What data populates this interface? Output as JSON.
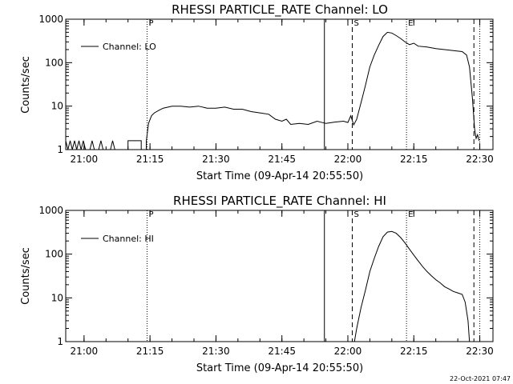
{
  "footer": {
    "timestamp": "22-Oct-2021 07:47"
  },
  "chart_data": [
    {
      "type": "line",
      "title": "RHESSI PARTICLE_RATE Channel: LO",
      "xlabel": "Start Time (09-Apr-14 20:55:50)",
      "ylabel": "Counts/sec",
      "yscale": "log",
      "xlim": [
        "20:55:50",
        "22:33:00"
      ],
      "ylim": [
        1,
        1000
      ],
      "x_ticks": [
        "21:00",
        "21:15",
        "21:30",
        "21:45",
        "22:00",
        "22:15",
        "22:30"
      ],
      "y_ticks": [
        "1",
        "10",
        "100",
        "1000"
      ],
      "legend": {
        "position": "top-left",
        "entries": [
          "Channel: LO"
        ]
      },
      "event_markers": [
        {
          "label": "P",
          "time": "21:14:20",
          "style": "dotted"
        },
        {
          "label": "",
          "time": "21:54:40",
          "style": "solid"
        },
        {
          "label": "S",
          "time": "22:01:00",
          "style": "dashed"
        },
        {
          "label": "E",
          "time": "22:13:20",
          "style": "dotted"
        },
        {
          "label": "",
          "time": "22:28:40",
          "style": "dashed"
        },
        {
          "label": "",
          "time": "22:30:00",
          "style": "dotted"
        }
      ],
      "series": [
        {
          "name": "Channel: LO",
          "points": [
            [
              "20:55:50",
              1.6
            ],
            [
              "20:56:20",
              1
            ],
            [
              "20:56:50",
              1.6
            ],
            [
              "20:57:20",
              1
            ],
            [
              "20:57:50",
              1.6
            ],
            [
              "20:58:20",
              1
            ],
            [
              "20:58:50",
              1.6
            ],
            [
              "20:59:20",
              1
            ],
            [
              "20:59:50",
              1.6
            ],
            [
              "21:00:20",
              1
            ],
            [
              "21:01:20",
              1
            ],
            [
              "21:01:50",
              1.6
            ],
            [
              "21:02:20",
              1
            ],
            [
              "21:03:20",
              1
            ],
            [
              "21:03:50",
              1.6
            ],
            [
              "21:04:20",
              1
            ],
            [
              "21:06:00",
              1
            ],
            [
              "21:06:30",
              1.6
            ],
            [
              "21:07:00",
              1
            ],
            [
              "21:10:00",
              1
            ],
            [
              "21:10:00",
              1.6
            ],
            [
              "21:13:00",
              1.6
            ],
            [
              "21:13:00",
              1
            ],
            [
              "21:14:10",
              1
            ],
            [
              "21:14:10",
              1.6
            ],
            [
              "21:14:40",
              4
            ],
            [
              "21:15:20",
              6
            ],
            [
              "21:16:00",
              7
            ],
            [
              "21:17:00",
              8
            ],
            [
              "21:18:00",
              9
            ],
            [
              "21:20:00",
              10
            ],
            [
              "21:22:00",
              10
            ],
            [
              "21:24:00",
              9.5
            ],
            [
              "21:26:00",
              10
            ],
            [
              "21:28:00",
              9
            ],
            [
              "21:30:00",
              9
            ],
            [
              "21:32:00",
              9.5
            ],
            [
              "21:34:00",
              8.5
            ],
            [
              "21:36:00",
              8.5
            ],
            [
              "21:38:00",
              7.5
            ],
            [
              "21:40:00",
              7
            ],
            [
              "21:42:00",
              6.5
            ],
            [
              "21:43:30",
              5
            ],
            [
              "21:45:00",
              4.5
            ],
            [
              "21:46:00",
              5
            ],
            [
              "21:47:00",
              3.8
            ],
            [
              "21:49:00",
              4
            ],
            [
              "21:51:00",
              3.8
            ],
            [
              "21:53:00",
              4.5
            ],
            [
              "21:55:00",
              4
            ],
            [
              "21:57:00",
              4.3
            ],
            [
              "21:59:00",
              4.5
            ],
            [
              "22:00:00",
              4.2
            ],
            [
              "22:00:40",
              6
            ],
            [
              "22:01:20",
              3.7
            ],
            [
              "22:02:00",
              5
            ],
            [
              "22:03:00",
              12
            ],
            [
              "22:04:00",
              30
            ],
            [
              "22:05:00",
              80
            ],
            [
              "22:06:00",
              150
            ],
            [
              "22:07:00",
              250
            ],
            [
              "22:08:00",
              400
            ],
            [
              "22:09:00",
              500
            ],
            [
              "22:10:00",
              480
            ],
            [
              "22:11:00",
              420
            ],
            [
              "22:12:00",
              360
            ],
            [
              "22:13:00",
              300
            ],
            [
              "22:14:00",
              260
            ],
            [
              "22:15:00",
              280
            ],
            [
              "22:16:00",
              240
            ],
            [
              "22:18:00",
              230
            ],
            [
              "22:20:00",
              210
            ],
            [
              "22:22:00",
              200
            ],
            [
              "22:24:00",
              190
            ],
            [
              "22:26:00",
              180
            ],
            [
              "22:27:00",
              150
            ],
            [
              "22:27:40",
              80
            ],
            [
              "22:28:20",
              15
            ],
            [
              "22:28:50",
              3
            ],
            [
              "22:29:10",
              1.8
            ],
            [
              "22:29:30",
              2.2
            ],
            [
              "22:29:50",
              1.6
            ]
          ]
        }
      ]
    },
    {
      "type": "line",
      "title": "RHESSI PARTICLE_RATE Channel: HI",
      "xlabel": "Start Time (09-Apr-14 20:55:50)",
      "ylabel": "Counts/sec",
      "yscale": "log",
      "xlim": [
        "20:55:50",
        "22:33:00"
      ],
      "ylim": [
        1,
        1000
      ],
      "x_ticks": [
        "21:00",
        "21:15",
        "21:30",
        "21:45",
        "22:00",
        "22:15",
        "22:30"
      ],
      "y_ticks": [
        "1",
        "10",
        "100",
        "1000"
      ],
      "legend": {
        "position": "top-left",
        "entries": [
          "Channel: HI"
        ]
      },
      "event_markers": [
        {
          "label": "P",
          "time": "21:14:20",
          "style": "dotted"
        },
        {
          "label": "",
          "time": "21:54:40",
          "style": "solid"
        },
        {
          "label": "S",
          "time": "22:01:00",
          "style": "dashed"
        },
        {
          "label": "E",
          "time": "22:13:20",
          "style": "dotted"
        },
        {
          "label": "",
          "time": "22:28:40",
          "style": "dashed"
        },
        {
          "label": "",
          "time": "22:30:00",
          "style": "dotted"
        }
      ],
      "series": [
        {
          "name": "Channel: HI",
          "points": [
            [
              "22:01:30",
              1
            ],
            [
              "22:02:00",
              2
            ],
            [
              "22:03:00",
              6
            ],
            [
              "22:04:00",
              15
            ],
            [
              "22:05:00",
              40
            ],
            [
              "22:06:00",
              80
            ],
            [
              "22:07:00",
              150
            ],
            [
              "22:08:00",
              250
            ],
            [
              "22:09:00",
              320
            ],
            [
              "22:10:00",
              330
            ],
            [
              "22:11:00",
              300
            ],
            [
              "22:12:00",
              240
            ],
            [
              "22:13:00",
              180
            ],
            [
              "22:14:00",
              130
            ],
            [
              "22:15:00",
              95
            ],
            [
              "22:16:00",
              70
            ],
            [
              "22:17:00",
              52
            ],
            [
              "22:18:00",
              40
            ],
            [
              "22:19:00",
              32
            ],
            [
              "22:20:00",
              26
            ],
            [
              "22:21:00",
              22
            ],
            [
              "22:22:00",
              18
            ],
            [
              "22:23:00",
              16
            ],
            [
              "22:24:00",
              14
            ],
            [
              "22:25:00",
              13
            ],
            [
              "22:26:00",
              12
            ],
            [
              "22:26:40",
              8
            ],
            [
              "22:27:20",
              3
            ],
            [
              "22:27:40",
              1
            ]
          ]
        }
      ]
    }
  ]
}
